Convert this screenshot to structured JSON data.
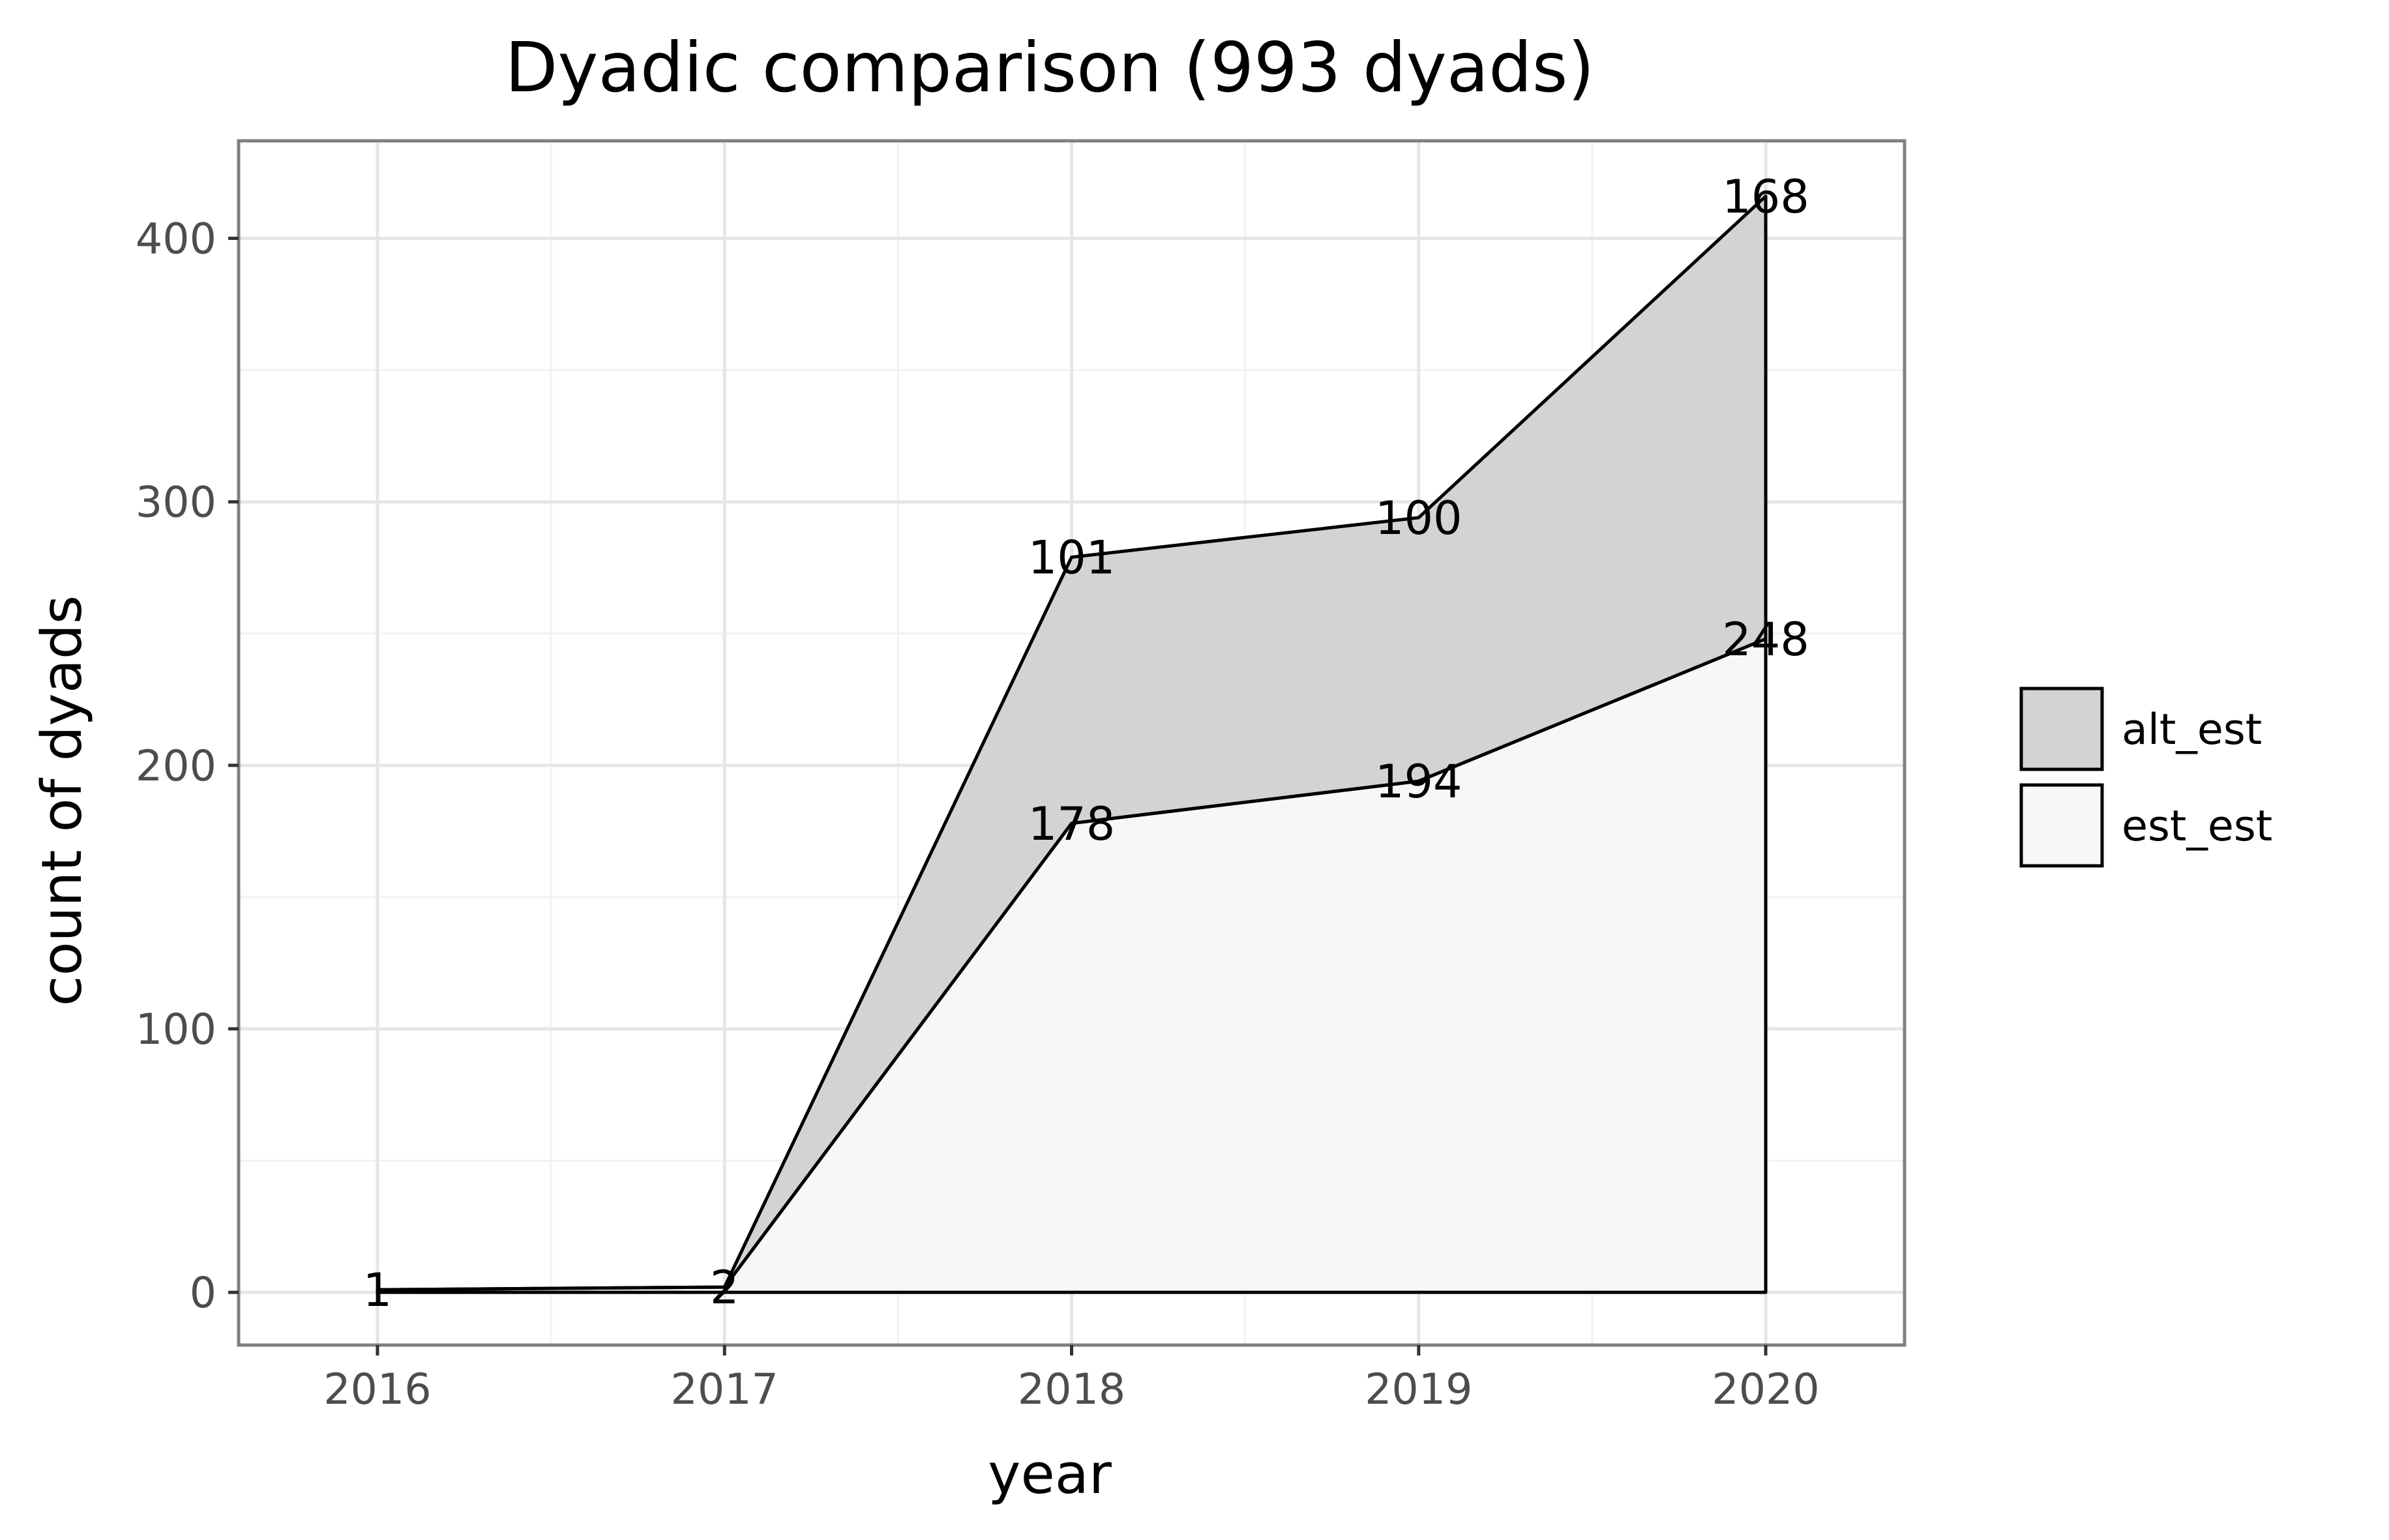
{
  "chart_data": {
    "type": "area",
    "stacked": true,
    "title": "Dyadic comparison (993 dyads)",
    "xlabel": "year",
    "ylabel": "count of dyads",
    "x": [
      2016,
      2017,
      2018,
      2019,
      2020
    ],
    "xlim": [
      2015.6,
      2020.4
    ],
    "ylim": [
      -20,
      437
    ],
    "xticks": [
      "2016",
      "2017",
      "2018",
      "2019",
      "2020"
    ],
    "yticks": [
      "0",
      "100",
      "200",
      "300",
      "400"
    ],
    "grid": true,
    "legend_position": "right",
    "series": [
      {
        "name": "est_est",
        "values": [
          1,
          2,
          178,
          194,
          248
        ],
        "labels": [
          "1",
          "2",
          "178",
          "194",
          "248"
        ],
        "fill": "#f7f7f7"
      },
      {
        "name": "alt_est",
        "values": [
          0,
          0,
          101,
          100,
          168
        ],
        "labels": [
          "",
          "",
          "101",
          "100",
          "168"
        ],
        "fill": "#d3d3d3"
      }
    ],
    "legend_order": [
      "alt_est",
      "est_est"
    ],
    "colors": {
      "panel_border": "#808080",
      "grid_major": "#e6e6e6",
      "grid_minor": "#f2f2f2",
      "line": "#000000"
    }
  }
}
